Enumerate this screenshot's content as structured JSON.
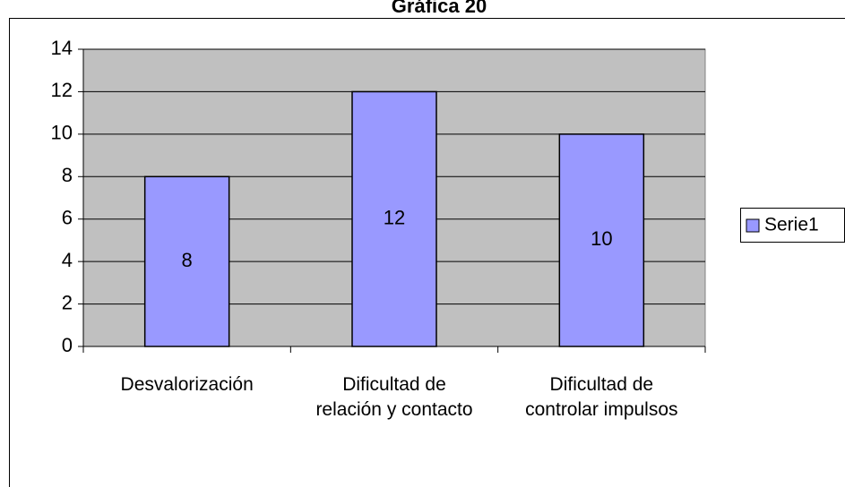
{
  "chart_data": {
    "type": "bar",
    "title": "Gráfica 20",
    "categories": [
      "Desvalorización",
      "Dificultad de relación y contacto",
      "Dificultad de controlar impulsos"
    ],
    "series": [
      {
        "name": "Serie1",
        "color": "#9999ff",
        "values": [
          8,
          12,
          10
        ]
      }
    ],
    "ylim": [
      0,
      14
    ],
    "yticks": [
      0,
      2,
      4,
      6,
      8,
      10,
      12,
      14
    ],
    "grid": true,
    "legend": "right"
  }
}
